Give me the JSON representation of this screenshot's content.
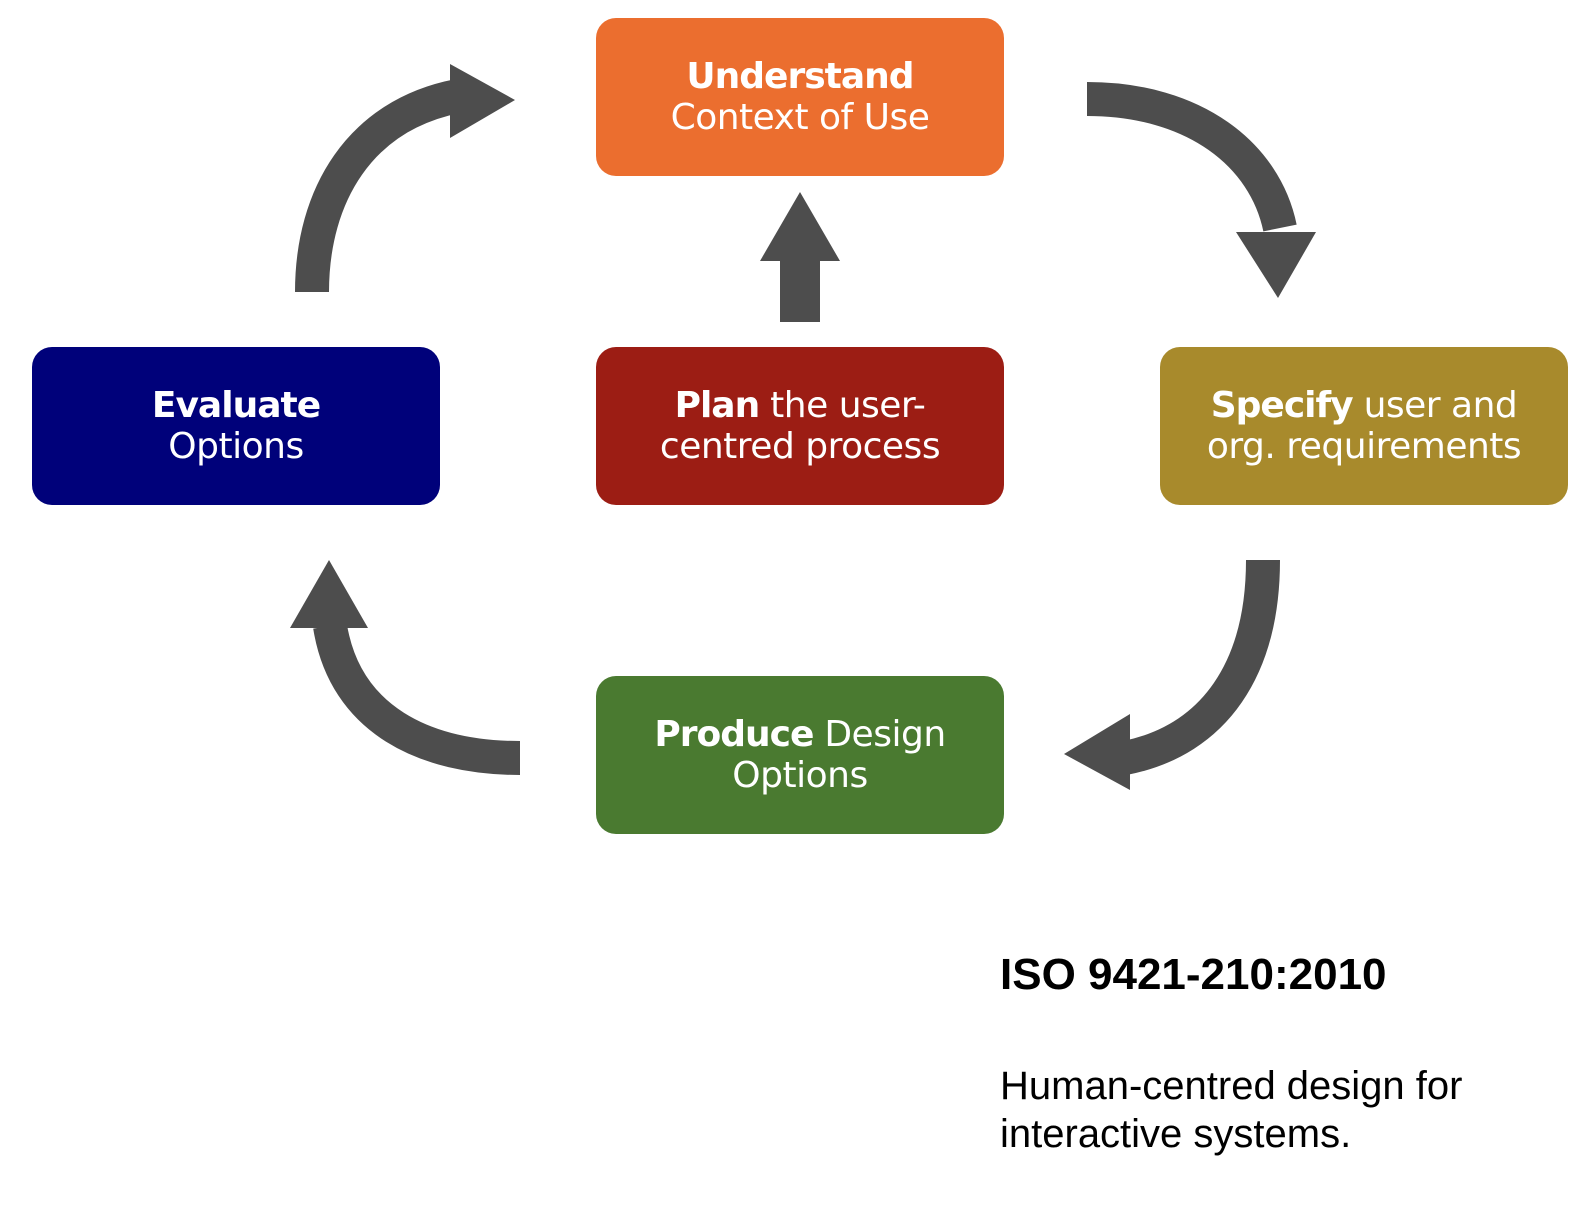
{
  "diagram": {
    "colors": {
      "arrow": "#4d4d4d",
      "understand": "#eb6e2f",
      "plan": "#9c1d14",
      "specify": "#a88a2c",
      "evaluate": "#00017a",
      "produce": "#4a7a30"
    },
    "boxes": {
      "understand": {
        "bold": "Understand",
        "rest": "Context of Use"
      },
      "plan": {
        "bold": "Plan",
        "rest_line1": " the user-",
        "line2": "centred process"
      },
      "specify": {
        "bold": "Specify",
        "rest_line1": " user and",
        "line2": "org. requirements"
      },
      "evaluate": {
        "bold": "Evaluate",
        "rest": "Options"
      },
      "produce": {
        "bold": "Produce",
        "rest_line1": " Design",
        "line2": "Options"
      }
    }
  },
  "caption": {
    "title": "ISO 9421-210:2010",
    "description": "Human-centred design for interactive systems."
  }
}
